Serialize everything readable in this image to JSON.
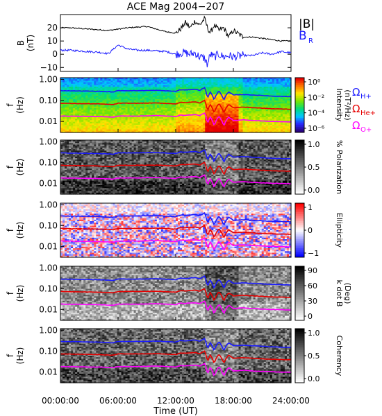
{
  "title": "ACE Mag 2004−207",
  "x_axis": {
    "label": "Time (UT)",
    "range_hours": [
      0,
      24
    ],
    "ticks": [
      {
        "v": 0,
        "label": "00:00:00"
      },
      {
        "v": 6,
        "label": "06:00:00"
      },
      {
        "v": 12,
        "label": "12:00:00"
      },
      {
        "v": 18,
        "label": "18:00:00"
      },
      {
        "v": 24,
        "label": "24:00:00"
      }
    ]
  },
  "colors": {
    "H": "#1a1aff",
    "He": "#e60000",
    "O": "#ff00ff",
    "B": "#000000",
    "BR": "#1a1aff"
  },
  "chart_data": [
    {
      "type": "line",
      "panel": "B",
      "ylabel": [
        "B",
        "(nT)"
      ],
      "ylim": [
        -13,
        30
      ],
      "yticks": [
        -10,
        0,
        10,
        20
      ],
      "x": [
        0,
        1,
        2,
        3,
        4,
        5,
        6,
        7,
        8,
        9,
        10,
        11,
        12,
        12.5,
        13,
        13.5,
        14,
        14.5,
        15,
        15.3,
        15.6,
        16,
        16.5,
        17,
        17.5,
        18,
        19,
        20,
        21,
        22,
        23,
        24
      ],
      "series": [
        {
          "name": "|B|",
          "values": [
            20,
            20,
            19.5,
            19,
            18.5,
            18,
            19,
            20,
            20.5,
            21,
            19,
            17,
            16,
            19,
            24,
            20,
            25,
            22,
            27,
            20,
            16,
            22,
            18,
            20,
            13,
            18,
            13,
            13,
            12,
            11,
            10,
            10
          ]
        },
        {
          "name": "B_R",
          "values": [
            3,
            3,
            2.5,
            2,
            1.5,
            0.5,
            7,
            4,
            3,
            3,
            2.5,
            2,
            0,
            1,
            1,
            0,
            1,
            -2,
            -3,
            -8,
            0,
            -2,
            0,
            -2,
            -1,
            -2,
            -1,
            -1,
            1,
            0,
            2,
            1
          ]
        }
      ],
      "legend": [
        {
          "label": "|B|",
          "color": "#000000"
        },
        {
          "label": "B",
          "sub": "R",
          "color": "#1a1aff"
        }
      ]
    },
    {
      "type": "heatmap",
      "panel": "intensity",
      "ylabel": [
        "f",
        "(Hz)"
      ],
      "yscale": "log",
      "ylim": [
        0.003,
        1.2
      ],
      "yticks": [
        {
          "v": 1,
          "label": "1.00"
        },
        {
          "v": 0.1,
          "label": "0.10"
        },
        {
          "v": 0.01,
          "label": "0.01"
        }
      ],
      "colorbar": {
        "label": [
          "Intensity",
          "(nT²/Hz)"
        ],
        "ticks": [
          "10⁰",
          "10⁻²",
          "10⁻⁴",
          "10⁻⁶"
        ],
        "palette": "rainbow"
      },
      "series_legend": [
        {
          "label": "Ω",
          "sub": "H+",
          "color": "#1a1aff"
        },
        {
          "label": "Ω",
          "sub": "He+",
          "color": "#e60000"
        },
        {
          "label": "Ω",
          "sub": "O+",
          "color": "#ff00ff"
        }
      ]
    },
    {
      "type": "heatmap",
      "panel": "polarization",
      "ylabel": [
        "f",
        "(Hz)"
      ],
      "yscale": "log",
      "colorbar": {
        "label": [
          "% Polarization"
        ],
        "ticks": [
          "1.0",
          "0.5",
          "0.0"
        ],
        "palette": "gray"
      }
    },
    {
      "type": "heatmap",
      "panel": "ellipticity",
      "ylabel": [
        "f",
        "(Hz)"
      ],
      "yscale": "log",
      "colorbar": {
        "label": [
          "Ellipticity"
        ],
        "ticks": [
          "1",
          "0",
          "−1"
        ],
        "palette": "bwr"
      }
    },
    {
      "type": "heatmap",
      "panel": "kdotb",
      "ylabel": [
        "f",
        "(Hz)"
      ],
      "yscale": "log",
      "colorbar": {
        "label": [
          "k dot B",
          "(Deg)"
        ],
        "ticks": [
          "90",
          "60",
          "30",
          "0"
        ],
        "palette": "gray"
      }
    },
    {
      "type": "heatmap",
      "panel": "coherency",
      "ylabel": [
        "f",
        "(Hz)"
      ],
      "yscale": "log",
      "colorbar": {
        "label": [
          "Coherency"
        ],
        "ticks": [
          "1.0",
          "0.5",
          "0.0"
        ],
        "palette": "gray"
      }
    },
    {
      "type": "line",
      "panel": "cyclotron_frequencies",
      "x": [
        0,
        2,
        4,
        5.5,
        6,
        8,
        10,
        12,
        12.5,
        13,
        14,
        14.5,
        15,
        15.3,
        15.6,
        16,
        16.5,
        17,
        17.5,
        18,
        19,
        20,
        22,
        24
      ],
      "series": [
        {
          "name": "ΩH+",
          "values": [
            0.29,
            0.28,
            0.27,
            0.25,
            0.29,
            0.29,
            0.3,
            0.27,
            0.32,
            0.31,
            0.34,
            0.3,
            0.4,
            0.12,
            0.25,
            0.1,
            0.28,
            0.1,
            0.25,
            0.18,
            0.19,
            0.18,
            0.16,
            0.15
          ]
        },
        {
          "name": "ΩHe+",
          "values": [
            0.073,
            0.07,
            0.068,
            0.063,
            0.073,
            0.073,
            0.075,
            0.068,
            0.08,
            0.078,
            0.085,
            0.075,
            0.1,
            0.03,
            0.063,
            0.025,
            0.07,
            0.025,
            0.063,
            0.045,
            0.048,
            0.045,
            0.04,
            0.038
          ]
        },
        {
          "name": "ΩO+",
          "values": [
            0.018,
            0.0175,
            0.017,
            0.016,
            0.018,
            0.018,
            0.019,
            0.017,
            0.02,
            0.0195,
            0.021,
            0.019,
            0.025,
            0.0075,
            0.016,
            0.006,
            0.0175,
            0.006,
            0.016,
            0.011,
            0.012,
            0.011,
            0.01,
            0.0095
          ]
        }
      ]
    }
  ]
}
